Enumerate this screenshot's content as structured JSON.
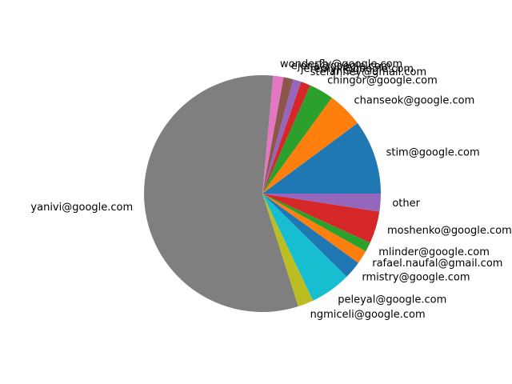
{
  "chart_data": {
    "type": "pie",
    "title": "",
    "start_angle_deg": 0,
    "direction": "counterclockwise",
    "legend": "none",
    "slices": [
      {
        "label": "stim@google.com",
        "value": 10.0,
        "color": "#1f77b4"
      },
      {
        "label": "chanseok@google.com",
        "value": 4.8,
        "color": "#ff7f0e"
      },
      {
        "label": "chingor@google.com",
        "value": 3.3,
        "color": "#2ca02c"
      },
      {
        "label": "stefanhey@gmail.com",
        "value": 1.3,
        "color": "#d62728"
      },
      {
        "label": "jeremyji@google.com",
        "value": 1.1,
        "color": "#9467bd"
      },
      {
        "label": "ejona@google.com",
        "value": 1.3,
        "color": "#8c564b"
      },
      {
        "label": "wonderfly@google.com",
        "value": 1.4,
        "color": "#e377c2"
      },
      {
        "label": "yanivi@google.com",
        "value": 55.5,
        "color": "#7f7f7f"
      },
      {
        "label": "ngmiceli@google.com",
        "value": 2.1,
        "color": "#bcbd22"
      },
      {
        "label": "peleyal@google.com",
        "value": 5.5,
        "color": "#17becf"
      },
      {
        "label": "rmistry@google.com",
        "value": 2.4,
        "color": "#1f77b4"
      },
      {
        "label": "rafael.naufal@gmail.com",
        "value": 1.8,
        "color": "#ff7f0e"
      },
      {
        "label": "mlinder@google.com",
        "value": 1.3,
        "color": "#2ca02c"
      },
      {
        "label": "moshenko@google.com",
        "value": 4.3,
        "color": "#d62728"
      },
      {
        "label": "other",
        "value": 2.4,
        "color": "#9467bd"
      }
    ]
  }
}
